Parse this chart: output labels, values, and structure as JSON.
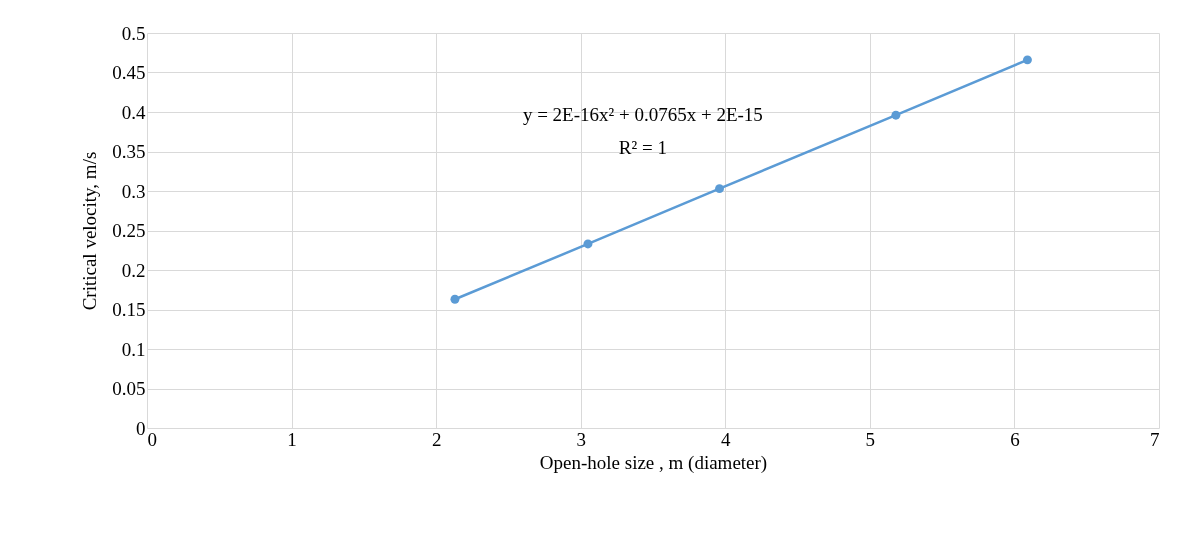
{
  "chart_data": {
    "type": "line",
    "xlabel": "Open-hole size , m (diameter)",
    "ylabel": "Critical velocity, m/s",
    "x": [
      2.13,
      3.05,
      3.96,
      5.18,
      6.09
    ],
    "series": [
      {
        "color": "#5b9bd5",
        "values": [
          0.163,
          0.233,
          0.303,
          0.396,
          0.466
        ]
      }
    ],
    "xlim": [
      0,
      7
    ],
    "xticks": [
      0,
      1,
      2,
      3,
      4,
      5,
      6,
      7
    ],
    "ylim": [
      0,
      0.5
    ],
    "yticks": [
      0,
      0.05,
      0.1,
      0.15,
      0.2,
      0.25,
      0.3,
      0.35,
      0.4,
      0.45,
      0.5
    ],
    "grid": true,
    "marker": "circle",
    "line_style": "solid",
    "annotations": [
      "y = 2E-16x² + 0.0765x + 2E-15",
      "R² = 1"
    ]
  }
}
